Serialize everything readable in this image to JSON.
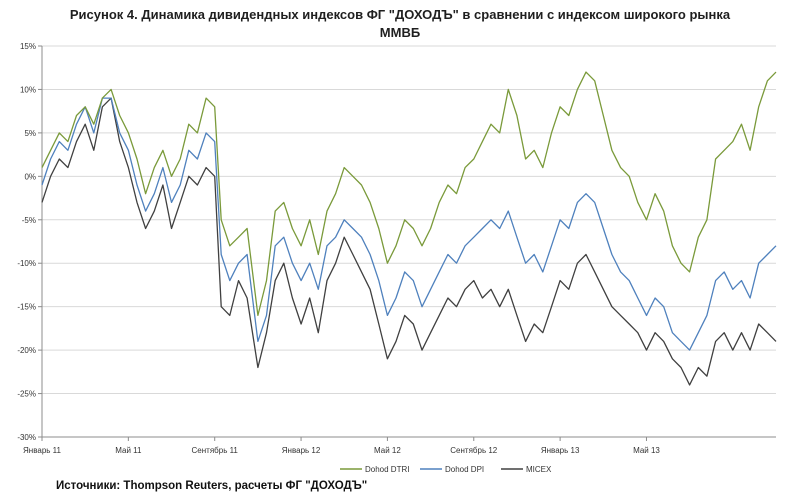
{
  "chart_data": {
    "type": "line",
    "title": "Рисунок 4. Динамика дивидендных индексов ФГ \"ДОХОДЪ\" в сравнении с индексом широкого рынка ММВБ",
    "title_line1": "Рисунок 4. Динамика дивидендных индексов ФГ \"ДОХОДЪ\" в сравнении с индексом широкого рынка",
    "title_line2": "ММВБ",
    "source": "Источники: Thompson Reuters, расчеты ФГ \"ДОХОДЪ\"",
    "xlabel": "",
    "ylabel": "",
    "x_range": [
      0,
      34
    ],
    "ylim": [
      -30,
      15
    ],
    "y_ticks": [
      {
        "value": 15,
        "label": "15%"
      },
      {
        "value": 10,
        "label": "10%"
      },
      {
        "value": 5,
        "label": "5%"
      },
      {
        "value": 0,
        "label": "0%"
      },
      {
        "value": -5,
        "label": "-5%"
      },
      {
        "value": -10,
        "label": "-10%"
      },
      {
        "value": -15,
        "label": "-15%"
      },
      {
        "value": -20,
        "label": "-20%"
      },
      {
        "value": -25,
        "label": "-25%"
      },
      {
        "value": -30,
        "label": "-30%"
      }
    ],
    "x_ticks": [
      {
        "value": 0,
        "label": "Январь 11"
      },
      {
        "value": 4,
        "label": "Май 11"
      },
      {
        "value": 8,
        "label": "Сентябрь 11"
      },
      {
        "value": 12,
        "label": "Январь 12"
      },
      {
        "value": 16,
        "label": "Май 12"
      },
      {
        "value": 20,
        "label": "Сентябрь 12"
      },
      {
        "value": 24,
        "label": "Январь 13"
      },
      {
        "value": 28,
        "label": "Май 13"
      }
    ],
    "legend_position": "bottom",
    "series": [
      {
        "name": "Dohod DTRI",
        "color": "#7a9a3a",
        "points": [
          [
            0,
            1
          ],
          [
            0.4,
            3
          ],
          [
            0.8,
            5
          ],
          [
            1.2,
            4
          ],
          [
            1.6,
            7
          ],
          [
            2,
            8
          ],
          [
            2.4,
            6
          ],
          [
            2.8,
            9
          ],
          [
            3.2,
            10
          ],
          [
            3.6,
            7
          ],
          [
            4,
            5
          ],
          [
            4.4,
            2
          ],
          [
            4.8,
            -2
          ],
          [
            5.2,
            1
          ],
          [
            5.6,
            3
          ],
          [
            6,
            0
          ],
          [
            6.4,
            2
          ],
          [
            6.8,
            6
          ],
          [
            7.2,
            5
          ],
          [
            7.6,
            9
          ],
          [
            8,
            8
          ],
          [
            8.3,
            -5
          ],
          [
            8.7,
            -8
          ],
          [
            9.1,
            -7
          ],
          [
            9.5,
            -6
          ],
          [
            10,
            -16
          ],
          [
            10.4,
            -12
          ],
          [
            10.8,
            -4
          ],
          [
            11.2,
            -3
          ],
          [
            11.6,
            -6
          ],
          [
            12,
            -8
          ],
          [
            12.4,
            -5
          ],
          [
            12.8,
            -9
          ],
          [
            13.2,
            -4
          ],
          [
            13.6,
            -2
          ],
          [
            14,
            1
          ],
          [
            14.4,
            0
          ],
          [
            14.8,
            -1
          ],
          [
            15.2,
            -3
          ],
          [
            15.6,
            -6
          ],
          [
            16,
            -10
          ],
          [
            16.4,
            -8
          ],
          [
            16.8,
            -5
          ],
          [
            17.2,
            -6
          ],
          [
            17.6,
            -8
          ],
          [
            18,
            -6
          ],
          [
            18.4,
            -3
          ],
          [
            18.8,
            -1
          ],
          [
            19.2,
            -2
          ],
          [
            19.6,
            1
          ],
          [
            20,
            2
          ],
          [
            20.4,
            4
          ],
          [
            20.8,
            6
          ],
          [
            21.2,
            5
          ],
          [
            21.6,
            10
          ],
          [
            22,
            7
          ],
          [
            22.4,
            2
          ],
          [
            22.8,
            3
          ],
          [
            23.2,
            1
          ],
          [
            23.6,
            5
          ],
          [
            24,
            8
          ],
          [
            24.4,
            7
          ],
          [
            24.8,
            10
          ],
          [
            25.2,
            12
          ],
          [
            25.6,
            11
          ],
          [
            26,
            7
          ],
          [
            26.4,
            3
          ],
          [
            26.8,
            1
          ],
          [
            27.2,
            0
          ],
          [
            27.6,
            -3
          ],
          [
            28,
            -5
          ],
          [
            28.4,
            -2
          ],
          [
            28.8,
            -4
          ],
          [
            29.2,
            -8
          ],
          [
            29.6,
            -10
          ],
          [
            30,
            -11
          ],
          [
            30.4,
            -7
          ],
          [
            30.8,
            -5
          ],
          [
            31.2,
            2
          ],
          [
            31.6,
            3
          ],
          [
            32,
            4
          ],
          [
            32.4,
            6
          ],
          [
            32.8,
            3
          ],
          [
            33.2,
            8
          ],
          [
            33.6,
            11
          ],
          [
            34,
            12
          ]
        ]
      },
      {
        "name": "Dohod DPI",
        "color": "#4f81bd",
        "points": [
          [
            0,
            -1
          ],
          [
            0.4,
            2
          ],
          [
            0.8,
            4
          ],
          [
            1.2,
            3
          ],
          [
            1.6,
            6
          ],
          [
            2,
            8
          ],
          [
            2.4,
            5
          ],
          [
            2.8,
            9
          ],
          [
            3.2,
            9
          ],
          [
            3.6,
            5
          ],
          [
            4,
            3
          ],
          [
            4.4,
            -1
          ],
          [
            4.8,
            -4
          ],
          [
            5.2,
            -2
          ],
          [
            5.6,
            1
          ],
          [
            6,
            -3
          ],
          [
            6.4,
            -1
          ],
          [
            6.8,
            3
          ],
          [
            7.2,
            2
          ],
          [
            7.6,
            5
          ],
          [
            8,
            4
          ],
          [
            8.3,
            -9
          ],
          [
            8.7,
            -12
          ],
          [
            9.1,
            -10
          ],
          [
            9.5,
            -9
          ],
          [
            10,
            -19
          ],
          [
            10.4,
            -16
          ],
          [
            10.8,
            -8
          ],
          [
            11.2,
            -7
          ],
          [
            11.6,
            -10
          ],
          [
            12,
            -12
          ],
          [
            12.4,
            -10
          ],
          [
            12.8,
            -13
          ],
          [
            13.2,
            -8
          ],
          [
            13.6,
            -7
          ],
          [
            14,
            -5
          ],
          [
            14.4,
            -6
          ],
          [
            14.8,
            -7
          ],
          [
            15.2,
            -9
          ],
          [
            15.6,
            -12
          ],
          [
            16,
            -16
          ],
          [
            16.4,
            -14
          ],
          [
            16.8,
            -11
          ],
          [
            17.2,
            -12
          ],
          [
            17.6,
            -15
          ],
          [
            18,
            -13
          ],
          [
            18.4,
            -11
          ],
          [
            18.8,
            -9
          ],
          [
            19.2,
            -10
          ],
          [
            19.6,
            -8
          ],
          [
            20,
            -7
          ],
          [
            20.4,
            -6
          ],
          [
            20.8,
            -5
          ],
          [
            21.2,
            -6
          ],
          [
            21.6,
            -4
          ],
          [
            22,
            -7
          ],
          [
            22.4,
            -10
          ],
          [
            22.8,
            -9
          ],
          [
            23.2,
            -11
          ],
          [
            23.6,
            -8
          ],
          [
            24,
            -5
          ],
          [
            24.4,
            -6
          ],
          [
            24.8,
            -3
          ],
          [
            25.2,
            -2
          ],
          [
            25.6,
            -3
          ],
          [
            26,
            -6
          ],
          [
            26.4,
            -9
          ],
          [
            26.8,
            -11
          ],
          [
            27.2,
            -12
          ],
          [
            27.6,
            -14
          ],
          [
            28,
            -16
          ],
          [
            28.4,
            -14
          ],
          [
            28.8,
            -15
          ],
          [
            29.2,
            -18
          ],
          [
            29.6,
            -19
          ],
          [
            30,
            -20
          ],
          [
            30.4,
            -18
          ],
          [
            30.8,
            -16
          ],
          [
            31.2,
            -12
          ],
          [
            31.6,
            -11
          ],
          [
            32,
            -13
          ],
          [
            32.4,
            -12
          ],
          [
            32.8,
            -14
          ],
          [
            33.2,
            -10
          ],
          [
            33.6,
            -9
          ],
          [
            34,
            -8
          ]
        ]
      },
      {
        "name": "MICEX",
        "color": "#404040",
        "points": [
          [
            0,
            -3
          ],
          [
            0.4,
            0
          ],
          [
            0.8,
            2
          ],
          [
            1.2,
            1
          ],
          [
            1.6,
            4
          ],
          [
            2,
            6
          ],
          [
            2.4,
            3
          ],
          [
            2.8,
            8
          ],
          [
            3.2,
            9
          ],
          [
            3.6,
            4
          ],
          [
            4,
            1
          ],
          [
            4.4,
            -3
          ],
          [
            4.8,
            -6
          ],
          [
            5.2,
            -4
          ],
          [
            5.6,
            -1
          ],
          [
            6,
            -6
          ],
          [
            6.4,
            -3
          ],
          [
            6.8,
            0
          ],
          [
            7.2,
            -1
          ],
          [
            7.6,
            1
          ],
          [
            8,
            0
          ],
          [
            8.3,
            -15
          ],
          [
            8.7,
            -16
          ],
          [
            9.1,
            -12
          ],
          [
            9.5,
            -14
          ],
          [
            10,
            -22
          ],
          [
            10.4,
            -18
          ],
          [
            10.8,
            -12
          ],
          [
            11.2,
            -10
          ],
          [
            11.6,
            -14
          ],
          [
            12,
            -17
          ],
          [
            12.4,
            -14
          ],
          [
            12.8,
            -18
          ],
          [
            13.2,
            -12
          ],
          [
            13.6,
            -10
          ],
          [
            14,
            -7
          ],
          [
            14.4,
            -9
          ],
          [
            14.8,
            -11
          ],
          [
            15.2,
            -13
          ],
          [
            15.6,
            -17
          ],
          [
            16,
            -21
          ],
          [
            16.4,
            -19
          ],
          [
            16.8,
            -16
          ],
          [
            17.2,
            -17
          ],
          [
            17.6,
            -20
          ],
          [
            18,
            -18
          ],
          [
            18.4,
            -16
          ],
          [
            18.8,
            -14
          ],
          [
            19.2,
            -15
          ],
          [
            19.6,
            -13
          ],
          [
            20,
            -12
          ],
          [
            20.4,
            -14
          ],
          [
            20.8,
            -13
          ],
          [
            21.2,
            -15
          ],
          [
            21.6,
            -13
          ],
          [
            22,
            -16
          ],
          [
            22.4,
            -19
          ],
          [
            22.8,
            -17
          ],
          [
            23.2,
            -18
          ],
          [
            23.6,
            -15
          ],
          [
            24,
            -12
          ],
          [
            24.4,
            -13
          ],
          [
            24.8,
            -10
          ],
          [
            25.2,
            -9
          ],
          [
            25.6,
            -11
          ],
          [
            26,
            -13
          ],
          [
            26.4,
            -15
          ],
          [
            26.8,
            -16
          ],
          [
            27.2,
            -17
          ],
          [
            27.6,
            -18
          ],
          [
            28,
            -20
          ],
          [
            28.4,
            -18
          ],
          [
            28.8,
            -19
          ],
          [
            29.2,
            -21
          ],
          [
            29.6,
            -22
          ],
          [
            30,
            -24
          ],
          [
            30.4,
            -22
          ],
          [
            30.8,
            -23
          ],
          [
            31.2,
            -19
          ],
          [
            31.6,
            -18
          ],
          [
            32,
            -20
          ],
          [
            32.4,
            -18
          ],
          [
            32.8,
            -20
          ],
          [
            33.2,
            -17
          ],
          [
            33.6,
            -18
          ],
          [
            34,
            -19
          ]
        ]
      }
    ]
  }
}
